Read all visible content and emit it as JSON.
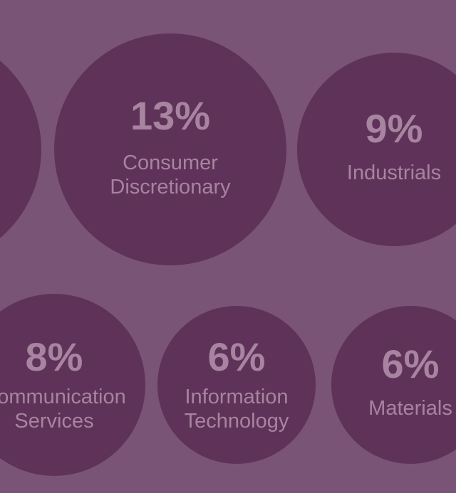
{
  "colors": {
    "background": "#7a5477",
    "bubble": "#5f3359",
    "text": "#a7849f"
  },
  "chart_data": {
    "type": "bubble",
    "unit": "%",
    "items": [
      {
        "value": 13,
        "label_lines": [
          "Consumer",
          "Discretionary"
        ]
      },
      {
        "value": 9,
        "label_lines": [
          "Industrials"
        ]
      },
      {
        "value": 8,
        "label_lines": [
          "Communication",
          "Services"
        ]
      },
      {
        "value": 6,
        "label_lines": [
          "Information",
          "Technology"
        ]
      },
      {
        "value": 6,
        "label_lines": [
          "Materials"
        ]
      }
    ]
  }
}
